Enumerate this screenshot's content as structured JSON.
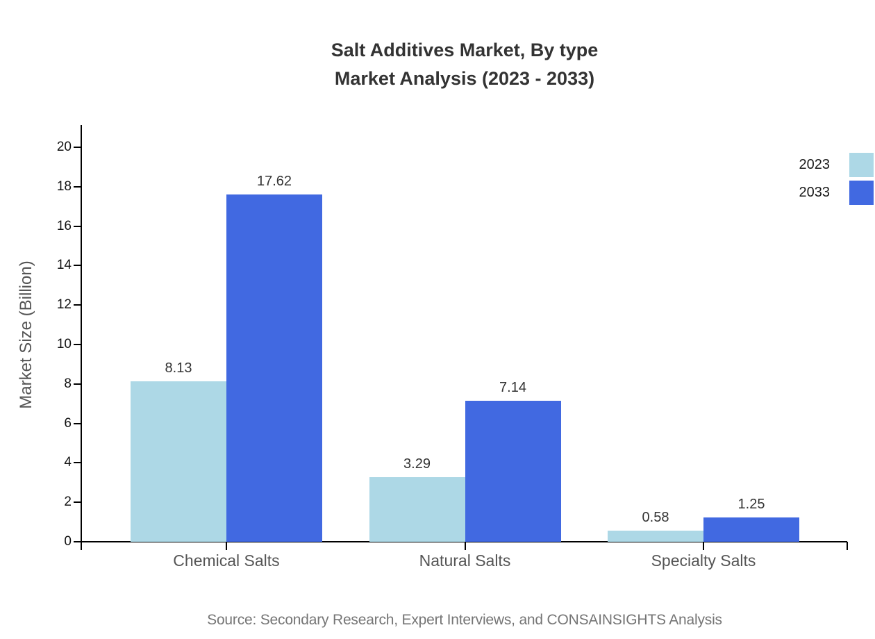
{
  "title": {
    "line1": "Salt Additives Market, By type",
    "line2": "Market Analysis (2023 - 2033)"
  },
  "y_axis_label": "Market Size (Billion)",
  "source_text": "Source: Secondary Research, Expert Interviews, and CONSAINSIGHTS Analysis",
  "colors": {
    "series_2023": "#ADD8E6",
    "series_2033": "#4169E1",
    "axis": "#000000",
    "title_text": "#333333",
    "category_text": "#555555",
    "source_text": "#757575"
  },
  "legend": {
    "position": "upper right",
    "items": [
      {
        "label": "2023",
        "color": "#ADD8E6"
      },
      {
        "label": "2033",
        "color": "#4169E1"
      }
    ]
  },
  "chart_data": {
    "type": "bar",
    "title": "Salt Additives Market, By type\nMarket Analysis (2023 - 2033)",
    "categories": [
      "Chemical Salts",
      "Natural Salts",
      "Specialty Salts"
    ],
    "series": [
      {
        "name": "2023",
        "color": "#ADD8E6",
        "values": [
          8.13,
          3.29,
          0.58
        ]
      },
      {
        "name": "2033",
        "color": "#4169E1",
        "values": [
          17.62,
          7.14,
          1.25
        ]
      }
    ],
    "xlabel": "",
    "ylabel": "Market Size (Billion)",
    "ylim": [
      0,
      21
    ],
    "yticks": [
      0,
      2,
      4,
      6,
      8,
      10,
      12,
      14,
      16,
      18,
      20
    ],
    "value_label_decimals": 2,
    "grid": false,
    "legend_position": "upper right"
  }
}
